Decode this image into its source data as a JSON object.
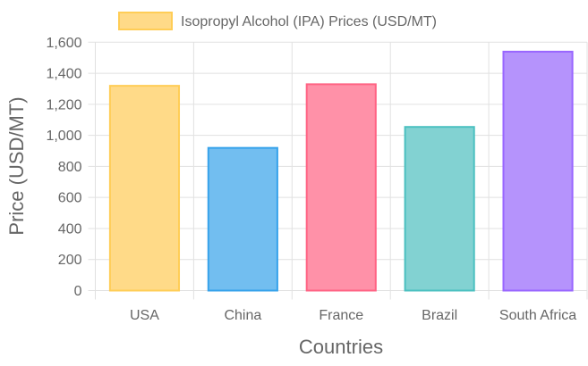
{
  "chart_data": {
    "type": "bar",
    "legend": {
      "label": "Isopropyl Alcohol (IPA) Prices (USD/MT)",
      "position": "top"
    },
    "categories": [
      "USA",
      "China",
      "France",
      "Brazil",
      "South Africa"
    ],
    "values": [
      1325,
      925,
      1335,
      1060,
      1545
    ],
    "colors": {
      "fill": [
        "#ffda88",
        "#72bef0",
        "#ff91a8",
        "#82d2d2",
        "#b593fc"
      ],
      "border": [
        "#ffcd56",
        "#36a2eb",
        "#ff6384",
        "#4bc0c0",
        "#9966ff"
      ]
    },
    "xlabel": "Countries",
    "ylabel": "Price (USD/MT)",
    "ylim": [
      0,
      1600
    ],
    "yticks": [
      "0",
      "200",
      "400",
      "600",
      "800",
      "1,000",
      "1,200",
      "1,400",
      "1,600"
    ],
    "grid": true
  }
}
